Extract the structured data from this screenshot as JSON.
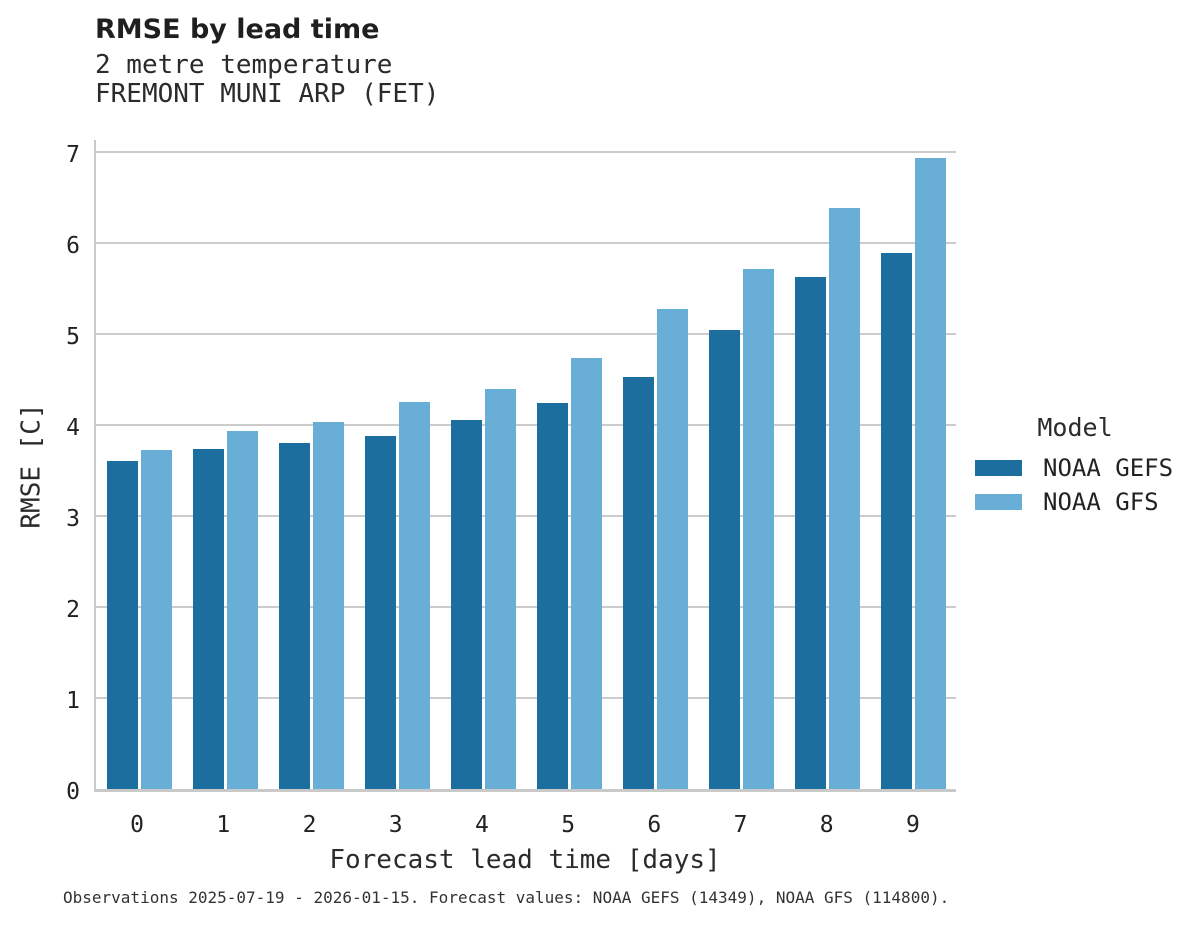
{
  "header": {
    "title": "RMSE by lead time",
    "subtitle_variable": "2 metre temperature",
    "subtitle_station": "FREMONT MUNI ARP (FET)"
  },
  "legend": {
    "title": "Model"
  },
  "caption": "Observations 2025-07-19 - 2026-01-15. Forecast values: NOAA GEFS (14349), NOAA GFS (114800).",
  "colors": {
    "gefs_blue": "#1b6e9e",
    "gfs_blue": "#69aed7",
    "grid_gray": "#cccccc",
    "spine_gray": "#c9c9c9"
  },
  "chart_data": {
    "type": "bar",
    "title": "RMSE by lead time",
    "subtitle": [
      "2 metre temperature",
      "FREMONT MUNI ARP (FET)"
    ],
    "xlabel": "Forecast lead time [days]",
    "ylabel": "RMSE [C]",
    "categories": [
      "0",
      "1",
      "2",
      "3",
      "4",
      "5",
      "6",
      "7",
      "8",
      "9"
    ],
    "series": [
      {
        "name": "NOAA GEFS",
        "color": "#1b6e9e",
        "values": [
          3.6,
          3.74,
          3.8,
          3.88,
          4.06,
          4.24,
          4.53,
          5.04,
          5.63,
          5.89
        ]
      },
      {
        "name": "NOAA GFS",
        "color": "#69aed7",
        "values": [
          3.72,
          3.93,
          4.03,
          4.25,
          4.4,
          4.74,
          5.27,
          5.71,
          6.39,
          6.93
        ]
      }
    ],
    "ylim": [
      0,
      7
    ],
    "yticks": [
      0,
      1,
      2,
      3,
      4,
      5,
      6,
      7
    ],
    "grid": true,
    "legend_title": "Model",
    "legend_position": "right"
  }
}
